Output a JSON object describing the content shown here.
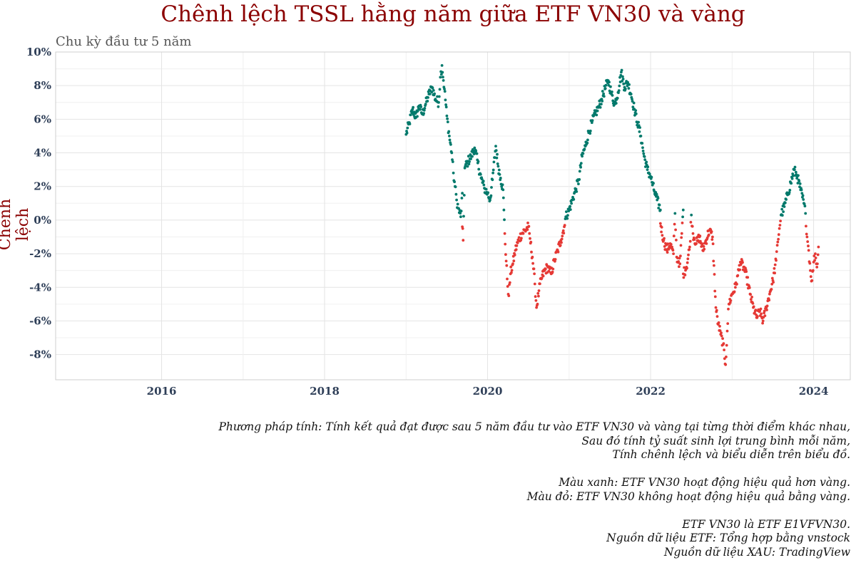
{
  "chart_data": {
    "type": "scatter",
    "title": "Chênh lệch TSSL hằng năm giữa ETF VN30 và vàng",
    "subtitle": "Chu kỳ đầu tư 5 năm",
    "xlabel": "",
    "ylabel": "Chênh lệch",
    "xlim": [
      2014.7,
      2024.45
    ],
    "ylim": [
      -0.095,
      0.1
    ],
    "x_ticks": [
      2016,
      2018,
      2020,
      2022,
      2024
    ],
    "x_tick_labels": [
      "2016",
      "2018",
      "2020",
      "2022",
      "2024"
    ],
    "y_ticks": [
      -0.08,
      -0.06,
      -0.04,
      -0.02,
      0,
      0.02,
      0.04,
      0.06,
      0.08,
      0.1
    ],
    "y_tick_labels": [
      "-8%",
      "-6%",
      "-4%",
      "-2%",
      "0%",
      "2%",
      "4%",
      "6%",
      "8%",
      "10%"
    ],
    "grid": true,
    "colors": {
      "positive": "#00796b",
      "negative": "#e53935"
    },
    "series": [
      {
        "points": [
          [
            2019.0,
            0.051
          ],
          [
            2019.04,
            0.058
          ],
          [
            2019.08,
            0.066
          ],
          [
            2019.12,
            0.061
          ],
          [
            2019.16,
            0.068
          ],
          [
            2019.2,
            0.063
          ],
          [
            2019.24,
            0.069
          ],
          [
            2019.28,
            0.075
          ],
          [
            2019.32,
            0.079
          ],
          [
            2019.36,
            0.072
          ],
          [
            2019.4,
            0.07
          ],
          [
            2019.42,
            0.085
          ],
          [
            2019.44,
            0.092
          ],
          [
            2019.47,
            0.078
          ],
          [
            2019.5,
            0.062
          ],
          [
            2019.53,
            0.05
          ],
          [
            2019.56,
            0.04
          ],
          [
            2019.58,
            0.028
          ],
          [
            2019.6,
            0.02
          ],
          [
            2019.62,
            0.012
          ],
          [
            2019.64,
            0.007
          ],
          [
            2019.67,
            0.002
          ],
          [
            2019.69,
            0.016
          ],
          [
            2019.72,
            0.031
          ],
          [
            2019.76,
            0.035
          ],
          [
            2019.8,
            0.038
          ],
          [
            2019.84,
            0.043
          ],
          [
            2019.88,
            0.034
          ],
          [
            2019.92,
            0.025
          ],
          [
            2019.96,
            0.019
          ],
          [
            2020.0,
            0.016
          ],
          [
            2020.03,
            0.012
          ],
          [
            2020.06,
            0.024
          ],
          [
            2020.1,
            0.044
          ],
          [
            2020.13,
            0.032
          ],
          [
            2020.16,
            0.025
          ],
          [
            2020.19,
            0.018
          ],
          [
            2020.2,
            0.006
          ],
          [
            2020.96,
            0.002
          ],
          [
            2021.0,
            0.006
          ],
          [
            2021.04,
            0.012
          ],
          [
            2021.08,
            0.018
          ],
          [
            2021.12,
            0.024
          ],
          [
            2021.16,
            0.038
          ],
          [
            2021.2,
            0.044
          ],
          [
            2021.24,
            0.052
          ],
          [
            2021.28,
            0.058
          ],
          [
            2021.32,
            0.063
          ],
          [
            2021.36,
            0.067
          ],
          [
            2021.4,
            0.072
          ],
          [
            2021.44,
            0.078
          ],
          [
            2021.48,
            0.083
          ],
          [
            2021.52,
            0.075
          ],
          [
            2021.56,
            0.069
          ],
          [
            2021.6,
            0.076
          ],
          [
            2021.64,
            0.088
          ],
          [
            2021.68,
            0.079
          ],
          [
            2021.72,
            0.082
          ],
          [
            2021.76,
            0.075
          ],
          [
            2021.8,
            0.066
          ],
          [
            2021.84,
            0.058
          ],
          [
            2021.88,
            0.05
          ],
          [
            2021.92,
            0.038
          ],
          [
            2021.96,
            0.03
          ],
          [
            2022.0,
            0.026
          ],
          [
            2022.04,
            0.018
          ],
          [
            2022.08,
            0.012
          ],
          [
            2022.12,
            0.006
          ],
          [
            2022.3,
            0.004
          ],
          [
            2022.4,
            0.006
          ],
          [
            2022.5,
            0.003
          ],
          [
            2023.6,
            0.003
          ],
          [
            2023.64,
            0.008
          ],
          [
            2023.68,
            0.015
          ],
          [
            2023.72,
            0.022
          ],
          [
            2023.76,
            0.03
          ],
          [
            2023.8,
            0.026
          ],
          [
            2023.84,
            0.018
          ],
          [
            2023.88,
            0.01
          ],
          [
            2023.9,
            0.004
          ]
        ]
      },
      {
        "points": [
          [
            2019.69,
            -0.004
          ],
          [
            2019.7,
            -0.012
          ],
          [
            2020.21,
            -0.008
          ],
          [
            2020.24,
            -0.035
          ],
          [
            2020.26,
            -0.045
          ],
          [
            2020.28,
            -0.032
          ],
          [
            2020.31,
            -0.026
          ],
          [
            2020.34,
            -0.018
          ],
          [
            2020.38,
            -0.012
          ],
          [
            2020.42,
            -0.008
          ],
          [
            2020.46,
            -0.006
          ],
          [
            2020.5,
            -0.004
          ],
          [
            2020.52,
            -0.011
          ],
          [
            2020.55,
            -0.022
          ],
          [
            2020.58,
            -0.038
          ],
          [
            2020.6,
            -0.052
          ],
          [
            2020.63,
            -0.042
          ],
          [
            2020.66,
            -0.035
          ],
          [
            2020.7,
            -0.03
          ],
          [
            2020.74,
            -0.028
          ],
          [
            2020.78,
            -0.032
          ],
          [
            2020.82,
            -0.024
          ],
          [
            2020.86,
            -0.018
          ],
          [
            2020.9,
            -0.012
          ],
          [
            2020.94,
            -0.004
          ],
          [
            2022.12,
            -0.002
          ],
          [
            2022.16,
            -0.012
          ],
          [
            2022.2,
            -0.018
          ],
          [
            2022.24,
            -0.014
          ],
          [
            2022.28,
            -0.02
          ],
          [
            2022.32,
            -0.022
          ],
          [
            2022.36,
            -0.026
          ],
          [
            2022.4,
            -0.032
          ],
          [
            2022.44,
            -0.028
          ],
          [
            2022.48,
            -0.016
          ],
          [
            2022.52,
            -0.008
          ],
          [
            2022.56,
            -0.014
          ],
          [
            2022.6,
            -0.01
          ],
          [
            2022.64,
            -0.018
          ],
          [
            2022.68,
            -0.012
          ],
          [
            2022.72,
            -0.006
          ],
          [
            2022.76,
            -0.01
          ],
          [
            2022.8,
            -0.052
          ],
          [
            2022.83,
            -0.062
          ],
          [
            2022.86,
            -0.068
          ],
          [
            2022.89,
            -0.074
          ],
          [
            2022.92,
            -0.086
          ],
          [
            2022.94,
            -0.066
          ],
          [
            2022.96,
            -0.05
          ],
          [
            2023.0,
            -0.044
          ],
          [
            2023.04,
            -0.04
          ],
          [
            2023.07,
            -0.033
          ],
          [
            2023.1,
            -0.025
          ],
          [
            2023.14,
            -0.028
          ],
          [
            2023.18,
            -0.034
          ],
          [
            2023.22,
            -0.044
          ],
          [
            2023.26,
            -0.052
          ],
          [
            2023.3,
            -0.058
          ],
          [
            2023.34,
            -0.054
          ],
          [
            2023.38,
            -0.06
          ],
          [
            2023.42,
            -0.052
          ],
          [
            2023.46,
            -0.044
          ],
          [
            2023.5,
            -0.036
          ],
          [
            2023.54,
            -0.024
          ],
          [
            2023.56,
            -0.013
          ],
          [
            2023.58,
            -0.005
          ],
          [
            2023.92,
            -0.01
          ],
          [
            2023.94,
            -0.018
          ],
          [
            2023.96,
            -0.03
          ],
          [
            2023.98,
            -0.036
          ],
          [
            2024.0,
            -0.025
          ],
          [
            2024.02,
            -0.02
          ],
          [
            2024.04,
            -0.028
          ],
          [
            2024.06,
            -0.016
          ]
        ]
      }
    ]
  },
  "notes": {
    "method_1": "Phương pháp tính: Tính kết quả đạt được sau 5 năm đầu tư vào ETF VN30 và vàng tại từng thời điểm khác nhau,",
    "method_2": "Sau đó tính tỷ suất sinh lợi trung bình mỗi năm,",
    "method_3": "Tính chênh lệch và biểu diễn trên biểu đồ.",
    "green_note": "Màu xanh: ETF VN30 hoạt động hiệu quả hơn vàng.",
    "red_note": "Màu đỏ: ETF VN30 không hoạt động hiệu quả bằng vàng.",
    "etf_note": "ETF VN30 là ETF E1VFVN30.",
    "etf_source": "Nguồn dữ liệu ETF: Tổng hợp bằng vnstock",
    "xau_source": "Nguồn dữ liệu XAU: TradingView"
  }
}
